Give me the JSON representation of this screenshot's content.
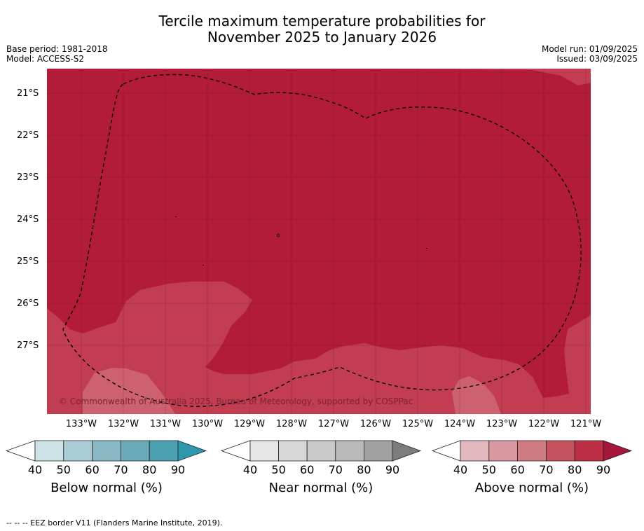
{
  "title_line1": "Tercile maximum temperature probabilities for",
  "title_line2": "November 2025 to January 2026",
  "meta_left": {
    "base_period": "Base period: 1981-2018",
    "model": "Model: ACCESS-S2"
  },
  "meta_right": {
    "model_run": "Model run: 01/09/2025",
    "issued": "Issued: 03/09/2025"
  },
  "map": {
    "copyright": "© Commonwealth of Australia 2025, Bureau of Meteorology, supported by COSPPac",
    "lat_labels": [
      "21°S",
      "22°S",
      "23°S",
      "24°S",
      "25°S",
      "26°S",
      "27°S"
    ],
    "lon_labels": [
      "133°W",
      "132°W",
      "131°W",
      "130°W",
      "129°W",
      "128°W",
      "127°W",
      "126°W",
      "125°W",
      "124°W",
      "123°W",
      "122°W",
      "121°W"
    ],
    "colors": {
      "above_80_90": "#b21c38",
      "above_70_80": "#c23d51",
      "above_60_70": "#cd6170"
    }
  },
  "colorbars": [
    {
      "label": "Below normal (%)",
      "ticks": [
        "40",
        "50",
        "60",
        "70",
        "80",
        "90"
      ],
      "colors": [
        "#cde3e8",
        "#a9cbd3",
        "#8ab8c4",
        "#6aa9b7",
        "#4aa0b1"
      ],
      "max_color": "#2f97ad"
    },
    {
      "label": "Near normal (%)",
      "ticks": [
        "40",
        "50",
        "60",
        "70",
        "80",
        "90"
      ],
      "colors": [
        "#e6e6e6",
        "#d7d7d7",
        "#c9c9c9",
        "#b9b9b9",
        "#a1a1a1"
      ],
      "max_color": "#7c7c7c"
    },
    {
      "label": "Above normal (%)",
      "ticks": [
        "40",
        "50",
        "60",
        "70",
        "80",
        "90"
      ],
      "colors": [
        "#e4b8bf",
        "#d9979f",
        "#d07b84",
        "#c4525f",
        "#bd2f45"
      ],
      "max_color": "#a4163a"
    }
  ],
  "footer": "--  --  -- EEZ border V11 (Flanders Marine Institute, 2019)."
}
